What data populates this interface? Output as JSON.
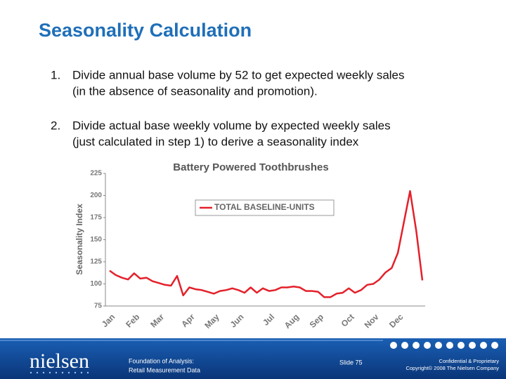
{
  "slide": {
    "title": "Seasonality Calculation",
    "steps": [
      {
        "number": "1.",
        "lines": [
          "Divide annual base volume by 52 to get expected weekly sales",
          "(in the absence of seasonality and promotion)."
        ]
      },
      {
        "number": "2.",
        "lines": [
          "Divide actual base weekly volume by expected weekly sales",
          "(just calculated in step 1) to derive a seasonality index"
        ]
      }
    ]
  },
  "chart_data": {
    "type": "line",
    "title": "Battery Powered Toothbrushes",
    "y_label": "Seasonality Index",
    "categories": [
      "Jan",
      null,
      null,
      null,
      "Feb",
      null,
      null,
      null,
      "Mar",
      null,
      null,
      null,
      null,
      "Apr",
      null,
      null,
      null,
      "May",
      null,
      null,
      null,
      "Jun",
      null,
      null,
      null,
      null,
      "Jul",
      null,
      null,
      null,
      "Aug",
      null,
      null,
      null,
      "Sep",
      null,
      null,
      null,
      null,
      "Oct",
      null,
      null,
      null,
      "Nov",
      null,
      null,
      null,
      "Dec",
      null,
      null,
      null,
      null
    ],
    "series": [
      {
        "name": "TOTAL BASELINE-UNITS",
        "color": "#e4202a",
        "values": [
          115,
          110,
          107,
          105,
          112,
          106,
          107,
          103,
          101,
          99,
          98,
          109,
          87,
          96,
          94,
          93,
          91,
          89,
          92,
          93,
          95,
          93,
          90,
          96,
          90,
          95,
          92,
          93,
          96,
          96,
          97,
          96,
          92,
          92,
          91,
          85,
          85,
          89,
          90,
          95,
          90,
          93,
          99,
          100,
          105,
          113,
          118,
          135,
          170,
          205,
          160,
          104
        ]
      }
    ],
    "ylim": [
      75,
      225
    ],
    "yticks": [
      75,
      100,
      125,
      150,
      175,
      200,
      225
    ],
    "grid": false
  },
  "footer": {
    "logo": "nielsen",
    "course": [
      "Foundation of Analysis:",
      "Retail Measurement Data"
    ],
    "slide": "Slide 75",
    "legal": [
      "Confidential & Proprietary",
      "Copyright© 2008 The Nielsen Company"
    ]
  }
}
